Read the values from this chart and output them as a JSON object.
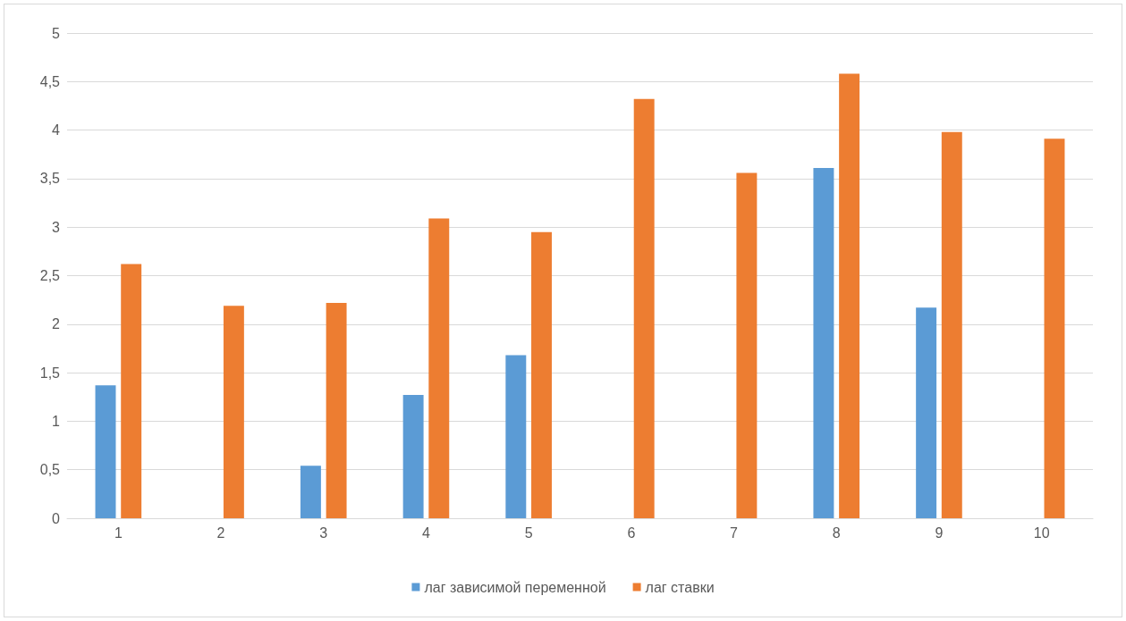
{
  "chart_data": {
    "type": "bar",
    "categories": [
      "1",
      "2",
      "3",
      "4",
      "5",
      "6",
      "7",
      "8",
      "9",
      "10"
    ],
    "series": [
      {
        "name": "лаг зависимой переменной",
        "color": "#5b9bd5",
        "values": [
          1.37,
          0,
          0.54,
          1.27,
          1.68,
          0,
          0,
          3.61,
          2.17,
          0
        ]
      },
      {
        "name": "лаг ставки",
        "color": "#ed7d31",
        "values": [
          2.62,
          2.19,
          2.22,
          3.09,
          2.95,
          4.32,
          3.56,
          4.58,
          3.98,
          3.91
        ]
      }
    ],
    "ylim": [
      0,
      5
    ],
    "yticks": [
      0,
      {
        "value": 0.5,
        "label": "0,5"
      },
      1,
      {
        "value": 1.5,
        "label": "1,5"
      },
      2,
      {
        "value": 2.5,
        "label": "2,5"
      },
      3,
      {
        "value": 3.5,
        "label": "3,5"
      },
      4,
      {
        "value": 4.5,
        "label": "4,5"
      },
      5
    ],
    "grid": "y",
    "legend": "bottom"
  }
}
